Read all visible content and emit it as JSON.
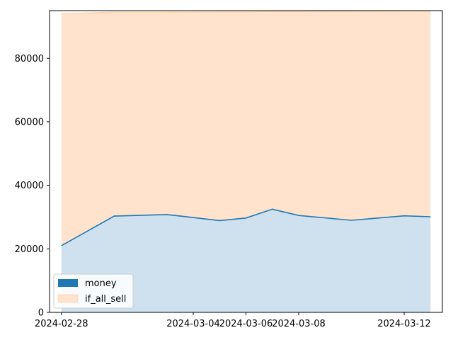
{
  "chart_data": {
    "type": "area",
    "x": [
      "2024-02-28",
      "2024-03-01",
      "2024-03-03",
      "2024-03-05",
      "2024-03-06",
      "2024-03-07",
      "2024-03-08",
      "2024-03-10",
      "2024-03-12",
      "2024-03-13"
    ],
    "series": [
      {
        "name": "money",
        "values": [
          21000,
          30300,
          30800,
          28900,
          29700,
          32500,
          30500,
          29000,
          30400,
          30100
        ],
        "color": "#1f77b4",
        "fill": "#cfe1ef"
      },
      {
        "name": "if_all_sell",
        "values": [
          94000,
          94500,
          94500,
          94600,
          94600,
          94700,
          94700,
          94800,
          94900,
          94900
        ],
        "color": "#ffcc99",
        "fill": "#ffe3cc"
      }
    ],
    "x_ticks": [
      "2024-02-28",
      "2024-03-04",
      "2024-03-06",
      "2024-03-08",
      "2024-03-12"
    ],
    "y_ticks": [
      "0",
      "20000",
      "40000",
      "60000",
      "80000"
    ],
    "ylim": [
      0,
      95000
    ],
    "grid": false,
    "legend_position": "lower-left",
    "title": "",
    "xlabel": "",
    "ylabel": ""
  }
}
